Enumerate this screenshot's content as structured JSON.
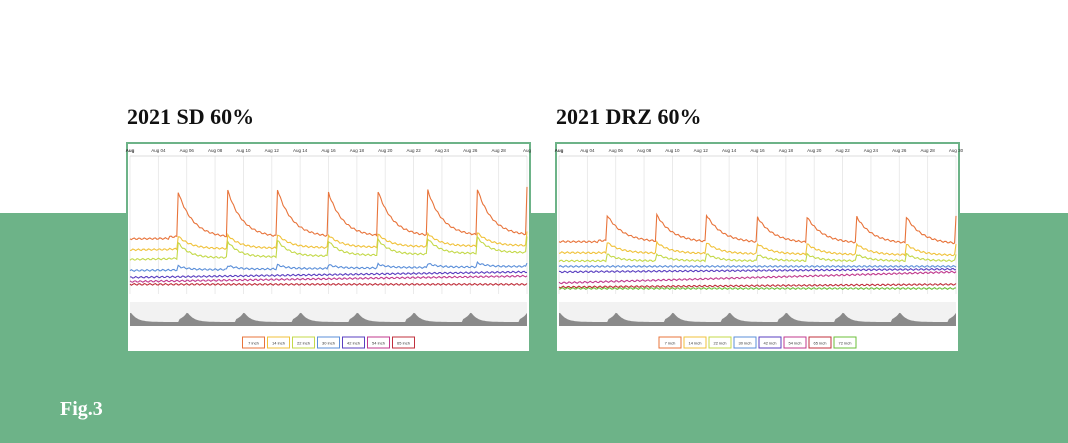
{
  "figure_label": "Fig.3",
  "chart_data": [
    {
      "type": "line",
      "title": "2021 SD 60%",
      "x_ticks": [
        "Aug",
        "Aug 04",
        "Aug 06",
        "Aug 08",
        "Aug 10",
        "Aug 12",
        "Aug 14",
        "Aug 16",
        "Aug 18",
        "Aug 20",
        "Aug 22",
        "Aug 24",
        "Aug 26",
        "Aug 28",
        "Aug"
      ],
      "legend_position": "bottom",
      "grid": true,
      "series": [
        {
          "name": "7 inch",
          "color": "#e8743b",
          "base": [
            60,
            58
          ],
          "spike": 35,
          "decay": 0.75
        },
        {
          "name": "14 inch",
          "color": "#f0c23b",
          "base": [
            68,
            65
          ],
          "spike": 10,
          "decay": 0.6
        },
        {
          "name": "22 inch",
          "color": "#c4d94a",
          "base": [
            75,
            70
          ],
          "spike": 12,
          "decay": 0.5
        },
        {
          "name": "30 inch",
          "color": "#5b8fd9",
          "base": [
            83,
            80
          ],
          "spike": 3,
          "decay": 0.3
        },
        {
          "name": "42 inch",
          "color": "#5a3fc0",
          "base": [
            88,
            84
          ],
          "spike": 0,
          "decay": 0
        },
        {
          "name": "54 inch",
          "color": "#c03a8e",
          "base": [
            91,
            87
          ],
          "spike": 0,
          "decay": 0
        },
        {
          "name": "65 inch",
          "color": "#c0303c",
          "base": [
            93,
            93
          ],
          "spike": 0,
          "decay": 0
        }
      ],
      "cycles": 7
    },
    {
      "type": "line",
      "title": "2021 DRZ 60%",
      "x_ticks": [
        "Aug",
        "Aug 04",
        "Aug 06",
        "Aug 08",
        "Aug 10",
        "Aug 12",
        "Aug 14",
        "Aug 16",
        "Aug 18",
        "Aug 20",
        "Aug 22",
        "Aug 24",
        "Aug 26",
        "Aug 28",
        "Aug 30"
      ],
      "legend_position": "bottom",
      "grid": true,
      "series": [
        {
          "name": "7 inch",
          "color": "#e8743b",
          "base": [
            62,
            64
          ],
          "spike": 20,
          "decay": 0.8
        },
        {
          "name": "14 inch",
          "color": "#f0c23b",
          "base": [
            70,
            72
          ],
          "spike": 8,
          "decay": 0.6
        },
        {
          "name": "22 inch",
          "color": "#c4d94a",
          "base": [
            76,
            76
          ],
          "spike": 5,
          "decay": 0.5
        },
        {
          "name": "30 inch",
          "color": "#5b8fd9",
          "base": [
            80,
            80
          ],
          "spike": 0,
          "decay": 0
        },
        {
          "name": "42 inch",
          "color": "#5a3fc0",
          "base": [
            84,
            82
          ],
          "spike": 0,
          "decay": 0
        },
        {
          "name": "54 inch",
          "color": "#c03a8e",
          "base": [
            92,
            84
          ],
          "spike": 0,
          "decay": 0
        },
        {
          "name": "65 inch",
          "color": "#c0303c",
          "base": [
            95,
            93
          ],
          "spike": 0,
          "decay": 0
        },
        {
          "name": "72 inch",
          "color": "#6bbf3a",
          "base": [
            96,
            96
          ],
          "spike": 0,
          "decay": 0
        }
      ],
      "cycles": 7
    }
  ]
}
